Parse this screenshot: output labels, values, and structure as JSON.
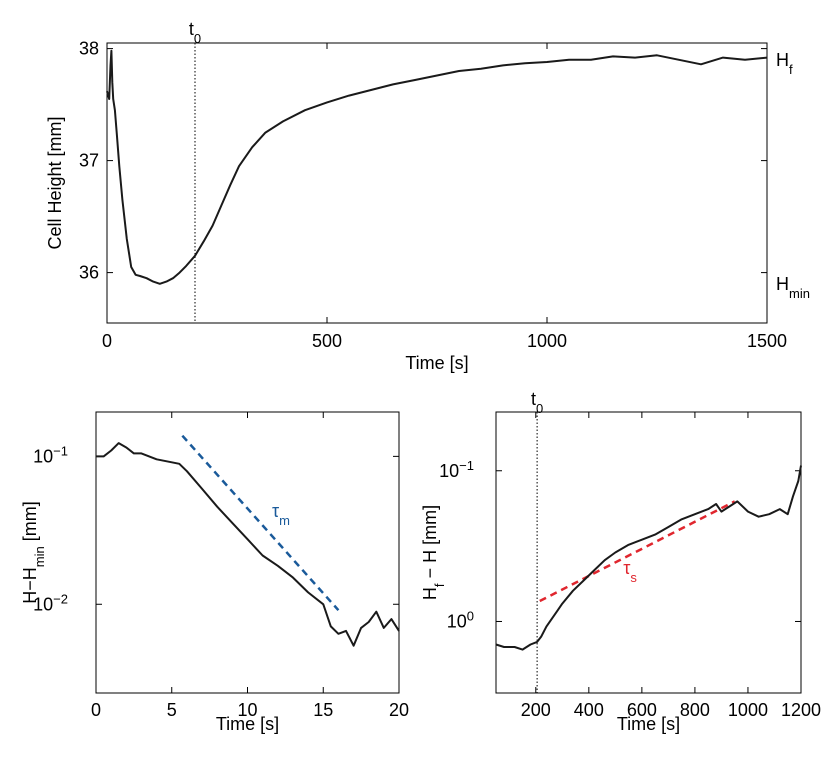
{
  "chart_data": [
    {
      "id": "top",
      "type": "line",
      "xlabel": "Time [s]",
      "ylabel": "Cell Height [mm]",
      "xlim": [
        0,
        1500
      ],
      "ylim": [
        35.55,
        38.05
      ],
      "xticks": [
        0,
        500,
        1000,
        1500
      ],
      "yticks": [
        36,
        37,
        38
      ],
      "x_tick_labels": [
        "0",
        "500",
        "1000",
        "1500"
      ],
      "y_tick_labels": [
        "36",
        "37",
        "38"
      ],
      "vline": {
        "x": 200,
        "label": "t",
        "label_sub": "0"
      },
      "right_labels": [
        {
          "y": 37.9,
          "text": "H",
          "sub": "f"
        },
        {
          "y": 35.9,
          "text": "H",
          "sub": "min"
        }
      ],
      "series": [
        {
          "x": [
            0,
            5,
            8,
            10,
            12,
            14,
            18,
            22,
            28,
            35,
            45,
            55,
            65,
            75,
            90,
            105,
            120,
            135,
            150,
            165,
            180,
            200,
            220,
            240,
            260,
            280,
            300,
            330,
            360,
            400,
            450,
            500,
            550,
            600,
            650,
            700,
            750,
            800,
            850,
            900,
            950,
            1000,
            1050,
            1100,
            1150,
            1200,
            1250,
            1300,
            1350,
            1400,
            1450,
            1500
          ],
          "y": [
            37.62,
            37.55,
            37.85,
            37.98,
            37.7,
            37.55,
            37.45,
            37.25,
            36.95,
            36.65,
            36.3,
            36.05,
            35.98,
            35.97,
            35.95,
            35.92,
            35.9,
            35.92,
            35.95,
            36.0,
            36.06,
            36.15,
            36.28,
            36.42,
            36.6,
            36.78,
            36.95,
            37.12,
            37.25,
            37.35,
            37.45,
            37.52,
            37.58,
            37.63,
            37.68,
            37.72,
            37.76,
            37.8,
            37.82,
            37.85,
            37.87,
            37.88,
            37.9,
            37.9,
            37.93,
            37.92,
            37.94,
            37.9,
            37.86,
            37.92,
            37.9,
            37.92
          ]
        }
      ]
    },
    {
      "id": "bottom-left",
      "type": "line",
      "xlabel": "Time  [s]",
      "ylabel": "H−H",
      "ylabel_sub": "min",
      "ylabel_unit": "  [mm]",
      "xlim": [
        0,
        20
      ],
      "ylim_log10": [
        -2.6,
        -0.7
      ],
      "yscale": "log",
      "xticks": [
        0,
        5,
        10,
        15,
        20
      ],
      "x_tick_labels": [
        "0",
        "5",
        "10",
        "15",
        "20"
      ],
      "yticks_log10": [
        -1,
        -2
      ],
      "y_tick_labels": [
        "10",
        "10"
      ],
      "y_tick_exponents": [
        "−1",
        "−2"
      ],
      "fit_line": {
        "x": [
          5.7,
          16
        ],
        "log10y": [
          -0.86,
          -2.04
        ],
        "color": "#1a5a9a",
        "label": "τ",
        "label_sub": "m"
      },
      "series": [
        {
          "x": [
            0,
            0.5,
            1,
            1.5,
            2,
            2.5,
            3,
            4,
            5,
            5.5,
            6,
            7,
            8,
            9,
            10,
            11,
            12,
            13,
            14,
            15,
            15.5,
            16,
            16.5,
            17,
            17.5,
            18,
            18.5,
            19,
            19.5,
            20
          ],
          "log10y": [
            -1.0,
            -1.0,
            -0.96,
            -0.91,
            -0.94,
            -0.98,
            -0.98,
            -1.02,
            -1.04,
            -1.05,
            -1.1,
            -1.22,
            -1.34,
            -1.45,
            -1.56,
            -1.67,
            -1.74,
            -1.82,
            -1.92,
            -2.0,
            -2.15,
            -2.2,
            -2.18,
            -2.28,
            -2.16,
            -2.12,
            -2.05,
            -2.16,
            -2.1,
            -2.18
          ]
        }
      ]
    },
    {
      "id": "bottom-right",
      "type": "line",
      "xlabel": "Time  [s]",
      "ylabel": "H",
      "ylabel_sub": "f",
      "ylabel_unit": " − H  [mm]",
      "xlim": [
        50,
        1200
      ],
      "ylim": [
        0.45,
        1.55
      ],
      "xticks": [
        200,
        400,
        600,
        800,
        1000,
        1200
      ],
      "x_tick_labels": [
        "200",
        "400",
        "600",
        "800",
        "1000",
        "1200"
      ],
      "yticks": [
        1,
        1
      ],
      "ytick_values": [
        0.73,
        1.32
      ],
      "y_tick_labels": [
        "10",
        "10"
      ],
      "y_tick_exponents": [
        "0",
        "−1"
      ],
      "vline": {
        "x": 205,
        "label": "t",
        "label_sub": "0"
      },
      "fit_line": {
        "x": [
          215,
          950
        ],
        "y": [
          0.81,
          1.2
        ],
        "color": "#e0262e",
        "label": "τ",
        "label_sub": "s"
      },
      "series": [
        {
          "x": [
            50,
            80,
            120,
            150,
            180,
            205,
            220,
            240,
            260,
            280,
            300,
            340,
            380,
            420,
            460,
            500,
            550,
            600,
            650,
            700,
            750,
            800,
            850,
            880,
            900,
            930,
            960,
            1000,
            1040,
            1080,
            1120,
            1150,
            1170,
            1190,
            1200
          ],
          "y": [
            0.64,
            0.63,
            0.63,
            0.62,
            0.64,
            0.65,
            0.67,
            0.71,
            0.74,
            0.77,
            0.8,
            0.85,
            0.89,
            0.93,
            0.97,
            1.0,
            1.03,
            1.05,
            1.07,
            1.1,
            1.13,
            1.15,
            1.17,
            1.19,
            1.16,
            1.18,
            1.2,
            1.16,
            1.14,
            1.15,
            1.17,
            1.15,
            1.22,
            1.28,
            1.34
          ]
        }
      ]
    }
  ]
}
